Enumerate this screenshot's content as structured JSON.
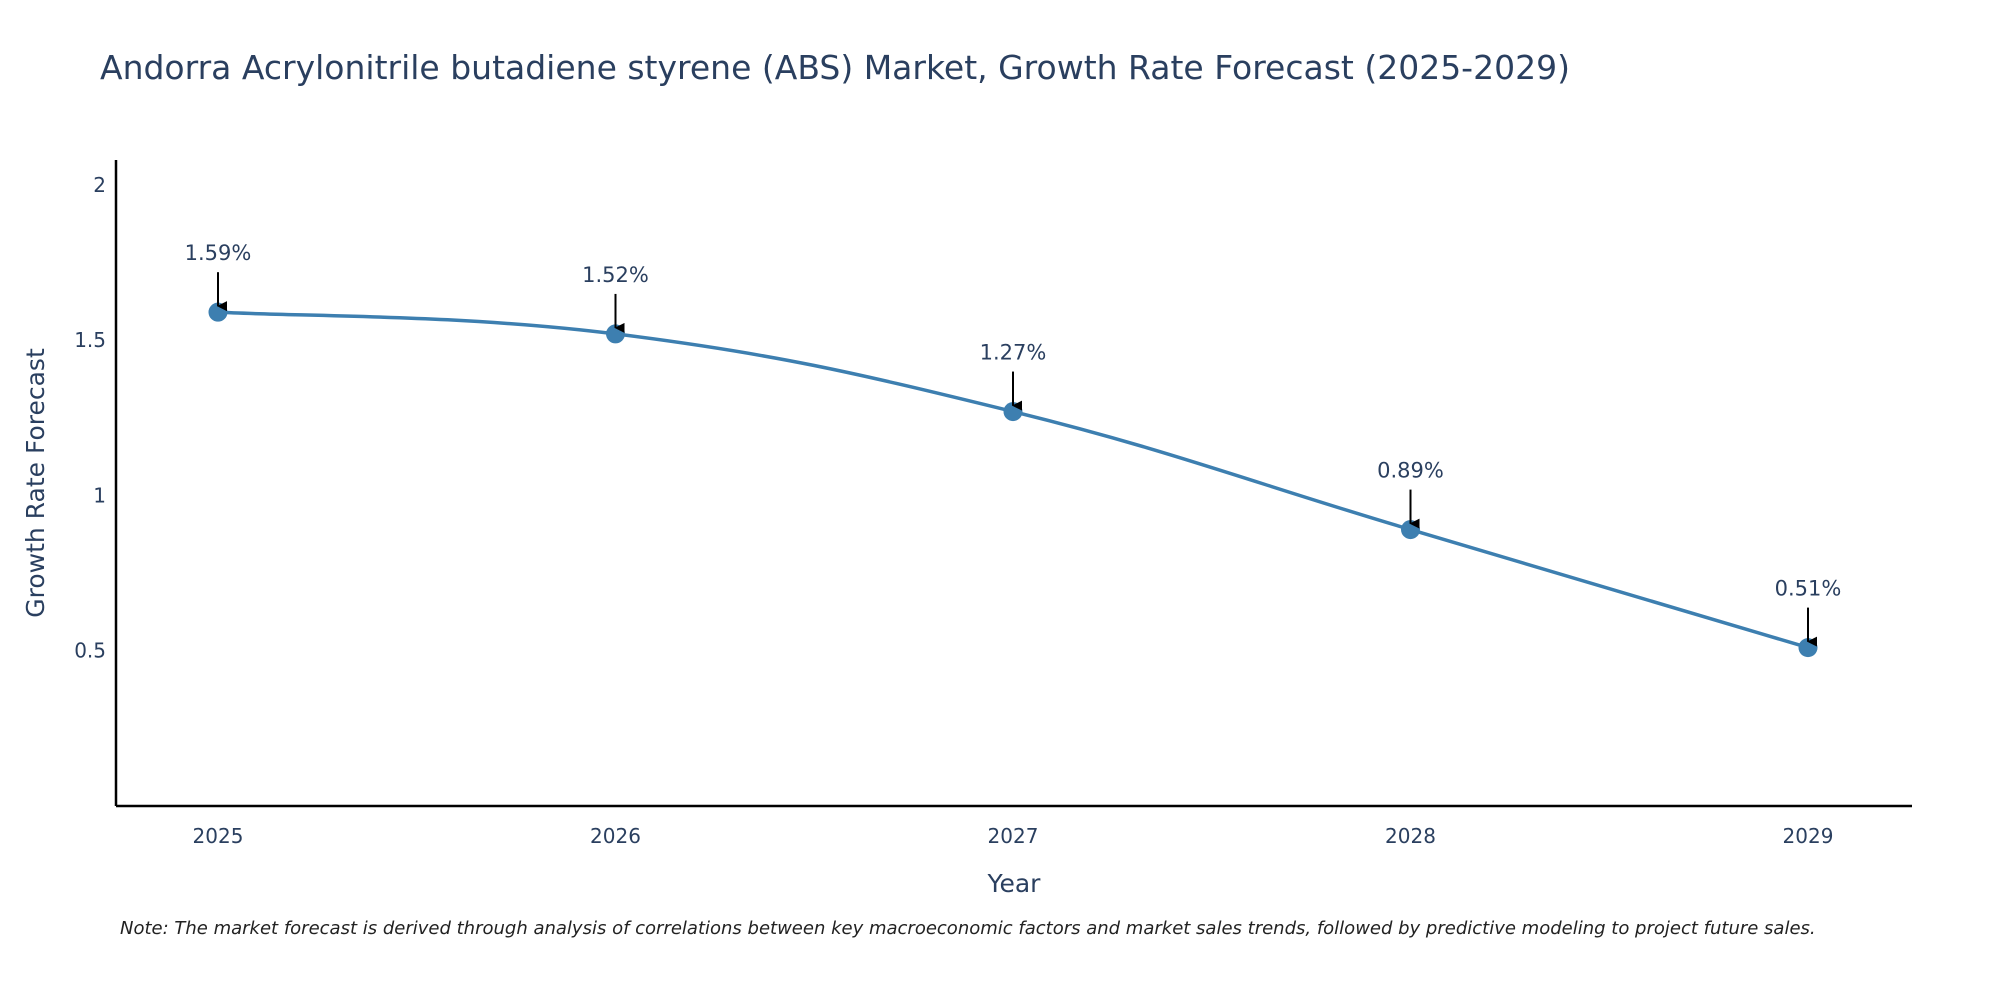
{
  "title": "Andorra Acrylonitrile butadiene styrene (ABS) Market, Growth Rate Forecast (2025-2029)",
  "note": "Note: The market forecast is derived through analysis of correlations between key macroeconomic factors and market sales trends, followed by predictive modeling to project future sales.",
  "colors": {
    "line": "#3d7fb0",
    "marker": "#3d7fb0",
    "axis": "#000000",
    "arrow": "#000000",
    "text": "#2a3f5f"
  },
  "chart_data": {
    "type": "line",
    "title": "Andorra Acrylonitrile butadiene styrene (ABS) Market, Growth Rate Forecast (2025-2029)",
    "xlabel": "Year",
    "ylabel": "Growth Rate Forecast",
    "categories": [
      "2025",
      "2026",
      "2027",
      "2028",
      "2029"
    ],
    "values": [
      1.59,
      1.52,
      1.27,
      0.89,
      0.51
    ],
    "data_labels": [
      "1.59%",
      "1.52%",
      "1.27%",
      "0.89%",
      "0.51%"
    ],
    "yticks": [
      0.5,
      1,
      1.5,
      2
    ],
    "ytick_labels": [
      "0.5",
      "1",
      "1.5",
      "2"
    ],
    "ylim": [
      0,
      2.08
    ],
    "grid": false,
    "legend": "none"
  }
}
